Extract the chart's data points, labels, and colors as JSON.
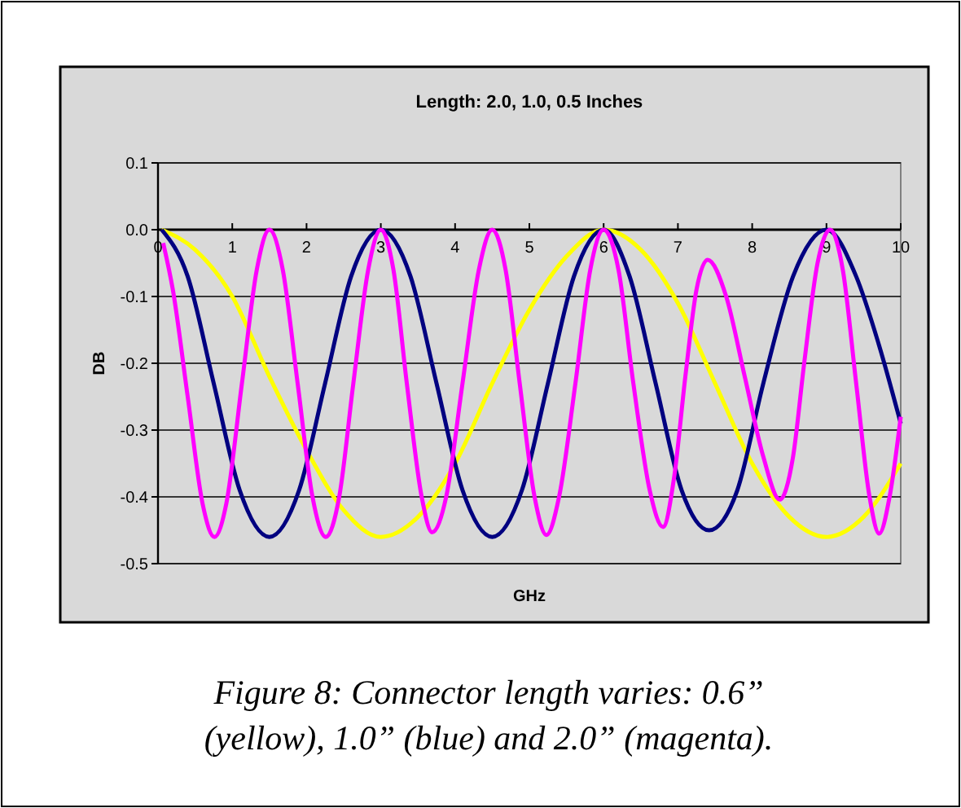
{
  "chart_data": {
    "type": "line",
    "title": "Length: 2.0, 1.0, 0.5 Inches",
    "xlabel": "GHz",
    "ylabel": "DB",
    "xlim": [
      0,
      10
    ],
    "xticks": [
      0,
      1,
      2,
      3,
      4,
      5,
      6,
      7,
      8,
      9,
      10
    ],
    "ylim": [
      -0.5,
      0.1
    ],
    "yticks": [
      {
        "value": 0.1,
        "label": "0.1"
      },
      {
        "value": 0,
        "label": "0.0"
      },
      {
        "value": -0.1,
        "label": "-0.1"
      },
      {
        "value": -0.2,
        "label": "-0.2"
      },
      {
        "value": -0.3,
        "label": "-0.3"
      },
      {
        "value": -0.4,
        "label": "-0.4"
      },
      {
        "value": -0.5,
        "label": "-0.5"
      }
    ],
    "grid": "y",
    "marker": "none",
    "line_style": "solid",
    "annotations": [
      "Figure 8: Connector length varies: 0.6” (yellow), 1.0” (blue) and 2.0” (magenta)."
    ],
    "series": [
      {
        "color": "#ffff00",
        "x": [
          0.05,
          0.5,
          1,
          1.5,
          2,
          2.5,
          3,
          3.5,
          4,
          4.5,
          5,
          5.5,
          6,
          6.5,
          7,
          7.5,
          8,
          8.5,
          9,
          9.5,
          10
        ],
        "values": [
          0,
          -0.03,
          -0.1,
          -0.22,
          -0.33,
          -0.42,
          -0.46,
          -0.43,
          -0.35,
          -0.23,
          -0.12,
          -0.04,
          0,
          -0.03,
          -0.11,
          -0.23,
          -0.35,
          -0.43,
          -0.46,
          -0.43,
          -0.35
        ]
      },
      {
        "color": "#000080",
        "x": [
          0.05,
          0.4,
          0.75,
          1.1,
          1.5,
          1.9,
          2.25,
          2.6,
          3,
          3.4,
          3.75,
          4.1,
          4.5,
          4.9,
          5.25,
          5.6,
          6,
          6.35,
          6.7,
          7.05,
          7.42,
          7.8,
          8.15,
          8.55,
          9,
          9.4,
          9.7,
          10
        ],
        "values": [
          0,
          -0.07,
          -0.23,
          -0.39,
          -0.46,
          -0.39,
          -0.23,
          -0.07,
          0,
          -0.07,
          -0.23,
          -0.39,
          -0.46,
          -0.39,
          -0.23,
          -0.07,
          0,
          -0.07,
          -0.23,
          -0.39,
          -0.45,
          -0.39,
          -0.23,
          -0.07,
          0,
          -0.07,
          -0.17,
          -0.29
        ]
      },
      {
        "color": "#ff00ff",
        "x": [
          0.07,
          0.2,
          0.4,
          0.6,
          0.76,
          0.92,
          1.13,
          1.33,
          1.5,
          1.68,
          1.88,
          2.08,
          2.26,
          2.44,
          2.63,
          2.83,
          3,
          3.17,
          3.35,
          3.55,
          3.69,
          3.88,
          4.1,
          4.32,
          4.5,
          4.68,
          4.87,
          5.07,
          5.23,
          5.4,
          5.62,
          5.82,
          6,
          6.2,
          6.4,
          6.62,
          6.8,
          6.95,
          7.1,
          7.25,
          7.4,
          7.65,
          7.9,
          8.15,
          8.37,
          8.55,
          8.7,
          8.88,
          9.05,
          9.22,
          9.4,
          9.58,
          9.71,
          9.85,
          10
        ],
        "values": [
          -0.02,
          -0.09,
          -0.25,
          -0.41,
          -0.46,
          -0.41,
          -0.23,
          -0.06,
          0,
          -0.06,
          -0.23,
          -0.4,
          -0.46,
          -0.4,
          -0.23,
          -0.06,
          0,
          -0.06,
          -0.23,
          -0.4,
          -0.453,
          -0.4,
          -0.23,
          -0.06,
          0,
          -0.06,
          -0.23,
          -0.4,
          -0.457,
          -0.4,
          -0.23,
          -0.06,
          0,
          -0.06,
          -0.23,
          -0.39,
          -0.445,
          -0.37,
          -0.22,
          -0.09,
          -0.045,
          -0.1,
          -0.22,
          -0.34,
          -0.404,
          -0.34,
          -0.2,
          -0.05,
          0,
          -0.06,
          -0.23,
          -0.4,
          -0.455,
          -0.4,
          -0.28
        ]
      }
    ]
  }
}
